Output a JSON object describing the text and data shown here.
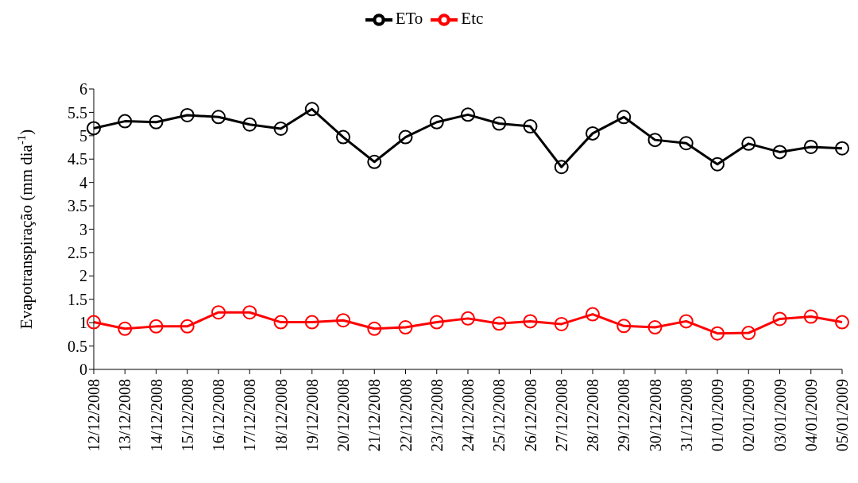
{
  "chart_data": {
    "type": "line",
    "ylabel": "Evapotranspiração (mm dia$^{-1}$)",
    "categories": [
      "12/12/2008",
      "13/12/2008",
      "14/12/2008",
      "15/12/2008",
      "16/12/2008",
      "17/12/2008",
      "18/12/2008",
      "19/12/2008",
      "20/12/2008",
      "21/12/2008",
      "22/12/2008",
      "23/12/2008",
      "24/12/2008",
      "25/12/2008",
      "26/12/2008",
      "27/12/2008",
      "28/12/2008",
      "29/12/2008",
      "30/12/2008",
      "31/12/2008",
      "01/01/2009",
      "02/01/2009",
      "03/01/2009",
      "04/01/2009",
      "05/01/2009"
    ],
    "series": [
      {
        "name": "Etc",
        "color": "#ff0000",
        "values": [
          1.01,
          0.87,
          0.92,
          0.92,
          1.22,
          1.22,
          1.01,
          1.01,
          1.05,
          0.87,
          0.9,
          1.01,
          1.09,
          0.98,
          1.03,
          0.97,
          1.18,
          0.93,
          0.9,
          1.03,
          0.77,
          0.78,
          1.08,
          1.13,
          1.01
        ]
      },
      {
        "name": "ETo",
        "color": "#000000",
        "values": [
          5.16,
          5.31,
          5.29,
          5.44,
          5.4,
          5.24,
          5.15,
          5.57,
          4.97,
          4.44,
          4.97,
          5.29,
          5.45,
          5.26,
          5.2,
          4.33,
          5.05,
          5.4,
          4.91,
          4.84,
          4.39,
          4.83,
          4.65,
          4.76,
          4.73
        ]
      }
    ],
    "ylim": [
      0,
      6
    ],
    "yticks": [
      0,
      0.5,
      1,
      1.5,
      2,
      2.5,
      3,
      3.5,
      4,
      4.5,
      5,
      5.5,
      6
    ],
    "grid": false,
    "legend": "top",
    "marker": "circle",
    "line_style": "solid"
  }
}
